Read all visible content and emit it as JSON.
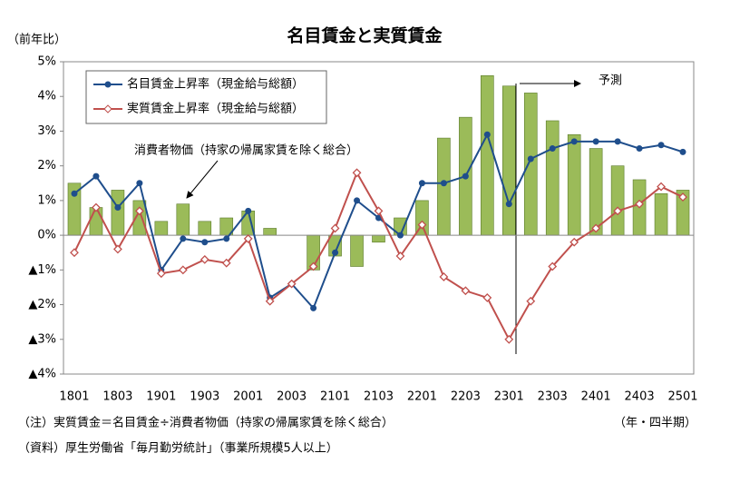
{
  "chart_data": {
    "type": "combo",
    "title": "名目賃金と実質賃金",
    "y_label": "（前年比）",
    "x_label": "（年・四半期）",
    "notes": [
      "（注）実質賃金＝名目賃金÷消費者物価（持家の帰属家賃を除く総合）",
      "（資料）厚生労働省「毎月勤労統計」（事業所規模5人以上）"
    ],
    "annotations": [
      "予測"
    ],
    "categories": [
      "1801",
      null,
      "1803",
      null,
      "1901",
      null,
      "1903",
      null,
      "2001",
      null,
      "2003",
      null,
      "2101",
      null,
      "2103",
      null,
      "2201",
      null,
      "2203",
      null,
      "2301",
      null,
      "2303",
      null,
      "2401",
      null,
      "2403",
      null,
      "2501"
    ],
    "ylim": [
      -4,
      5
    ],
    "yticks": [
      {
        "value": 5,
        "label": "5%"
      },
      {
        "value": 4,
        "label": "4%"
      },
      {
        "value": 3,
        "label": "3%"
      },
      {
        "value": 2,
        "label": "2%"
      },
      {
        "value": 1,
        "label": "1%"
      },
      {
        "value": 0,
        "label": "0%"
      },
      {
        "value": -1,
        "label": "▲1%"
      },
      {
        "value": -2,
        "label": "▲2%"
      },
      {
        "value": -3,
        "label": "▲3%"
      },
      {
        "value": -4,
        "label": "▲4%"
      }
    ],
    "grid": false,
    "series": [
      {
        "name": "消費者物価（持家の帰属家賃を除く総合）",
        "type": "bar",
        "color": "#9bbb59",
        "values": [
          1.5,
          0.8,
          1.3,
          1.0,
          0.4,
          0.9,
          0.4,
          0.5,
          0.7,
          0.2,
          0,
          -1.0,
          -0.6,
          -0.9,
          -0.2,
          0.5,
          1.0,
          2.8,
          3.4,
          4.6,
          4.3,
          4.1,
          3.3,
          2.9,
          2.5,
          2.0,
          1.6,
          1.2,
          1.3
        ]
      },
      {
        "name": "名目賃金上昇率（現金給与総額）",
        "type": "line",
        "marker": "circle",
        "color": "#1f4e8c",
        "values": [
          1.2,
          1.7,
          0.8,
          1.5,
          -1.0,
          -0.1,
          -0.2,
          -0.1,
          0.7,
          -1.8,
          -1.4,
          -2.1,
          -0.5,
          1.0,
          0.5,
          0.0,
          1.5,
          1.5,
          1.7,
          2.9,
          0.9,
          2.2,
          2.5,
          2.7,
          2.7,
          2.7,
          2.5,
          2.6,
          2.4
        ]
      },
      {
        "name": "実質賃金上昇率（現金給与総額）",
        "type": "line",
        "marker": "diamond",
        "color": "#c0504d",
        "values": [
          -0.5,
          0.8,
          -0.4,
          0.7,
          -1.1,
          -1.0,
          -0.7,
          -0.8,
          -0.1,
          -1.9,
          -1.4,
          -0.9,
          0.2,
          1.8,
          0.7,
          -0.6,
          0.3,
          -1.2,
          -1.6,
          -1.8,
          -3.0,
          -1.9,
          -0.9,
          -0.2,
          0.2,
          0.7,
          0.9,
          1.4,
          1.1
        ]
      }
    ]
  }
}
